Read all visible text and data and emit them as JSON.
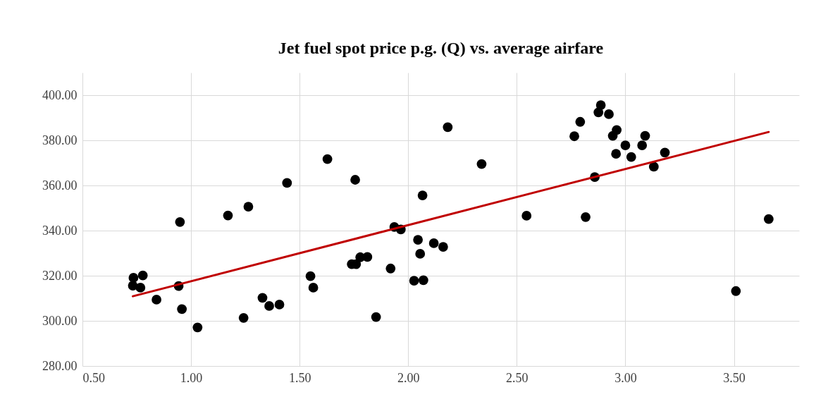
{
  "chart_data": {
    "type": "scatter",
    "title": "Jet fuel spot price p.g. (Q) vs. average airfare",
    "xlim": [
      0.5,
      3.8
    ],
    "ylim": [
      280,
      410
    ],
    "xticks": [
      {
        "value": 0.5,
        "label": "0.50"
      },
      {
        "value": 1,
        "label": "1.00"
      },
      {
        "value": 1.5,
        "label": "1.50"
      },
      {
        "value": 2,
        "label": "2.00"
      },
      {
        "value": 2.5,
        "label": "2.50"
      },
      {
        "value": 3,
        "label": "3.00"
      },
      {
        "value": 3.5,
        "label": "3.50"
      }
    ],
    "yticks": [
      {
        "value": 280,
        "label": "280.00"
      },
      {
        "value": 300,
        "label": "300.00"
      },
      {
        "value": 320,
        "label": "320.00"
      },
      {
        "value": 340,
        "label": "340.00"
      },
      {
        "value": 360,
        "label": "360.00"
      },
      {
        "value": 380,
        "label": "380.00"
      },
      {
        "value": 400,
        "label": "400.00"
      }
    ],
    "grid": true,
    "legend": false,
    "marker": "circle",
    "series": [
      {
        "color": "#000000",
        "x": [
          0.735,
          0.778,
          0.732,
          0.767,
          0.841,
          0.943,
          0.949,
          0.958,
          1.03,
          1.17,
          1.264,
          1.242,
          1.329,
          1.36,
          1.407,
          1.442,
          1.55,
          1.563,
          1.628,
          1.756,
          1.74,
          1.76,
          1.779,
          1.812,
          1.852,
          1.919,
          1.936,
          1.966,
          2.066,
          2.045,
          2.055,
          2.027,
          2.07,
          2.118,
          2.161,
          2.182,
          2.338,
          2.545,
          2.817,
          2.765,
          2.792,
          2.887,
          2.876,
          2.924,
          2.96,
          2.942,
          2.957,
          2.859,
          3.0,
          3.027,
          3.077,
          3.091,
          3.182,
          3.131,
          3.509,
          3.66
        ],
        "values": [
          319.1,
          320.1,
          315.6,
          314.7,
          309.4,
          315.4,
          343.8,
          305.2,
          297.1,
          346.7,
          350.6,
          301.3,
          310.2,
          306.6,
          307.2,
          361.1,
          319.8,
          314.7,
          371.7,
          362.5,
          325.1,
          325.1,
          328.2,
          328.3,
          301.7,
          323.2,
          341.6,
          340.5,
          355.6,
          335.9,
          329.7,
          317.8,
          318.0,
          334.4,
          332.8,
          385.8,
          369.5,
          346.6,
          346.0,
          381.8,
          388.2,
          395.6,
          392.4,
          391.6,
          384.6,
          382.0,
          374.0,
          363.7,
          377.8,
          372.6,
          377.8,
          382.0,
          374.6,
          368.3,
          313.2,
          345.1
        ]
      },
      {
        "type": "line",
        "color": "#c00000",
        "marker": "none",
        "line_style": "solid",
        "x": [
          0.732,
          3.66
        ],
        "values": [
          310.9,
          383.7
        ]
      }
    ]
  }
}
